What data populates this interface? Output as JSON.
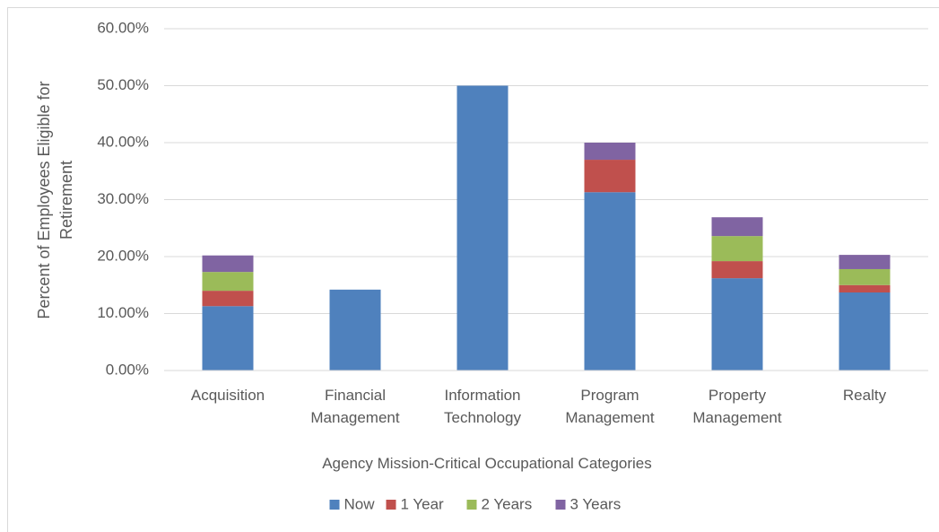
{
  "chart_data": {
    "type": "stacked_bar",
    "x_label": "Agency Mission-Critical Occupational Categories",
    "y_label": "Percent of Employees Eligible for Retirement",
    "categories": [
      "Acquisition",
      "Financial Management",
      "Information Technology",
      "Program Management",
      "Property Management",
      "Realty"
    ],
    "series": [
      {
        "name": "Now",
        "color": "#4f81bd",
        "values": [
          11.3,
          14.2,
          50,
          31.3,
          16.2,
          13.7
        ]
      },
      {
        "name": "1 Year",
        "color": "#c0504d",
        "values": [
          2.7,
          0,
          0,
          5.7,
          3.0,
          1.3
        ]
      },
      {
        "name": "2 Years",
        "color": "#9bbb59",
        "values": [
          3.3,
          0,
          0,
          0,
          4.4,
          2.8
        ]
      },
      {
        "name": "3 Years",
        "color": "#8064a2",
        "values": [
          2.9,
          0,
          0,
          3.0,
          3.3,
          2.5
        ]
      }
    ],
    "ylim": [
      0,
      60
    ],
    "yticks": [
      {
        "value": 0,
        "label": "0.00%"
      },
      {
        "value": 10,
        "label": "10.00%"
      },
      {
        "value": 20,
        "label": "20.00%"
      },
      {
        "value": 30,
        "label": "30.00%"
      },
      {
        "value": 40,
        "label": "40.00%"
      },
      {
        "value": 50,
        "label": "50.00%"
      },
      {
        "value": 60,
        "label": "60.00%"
      }
    ],
    "grid": true,
    "legend": "bottom"
  }
}
